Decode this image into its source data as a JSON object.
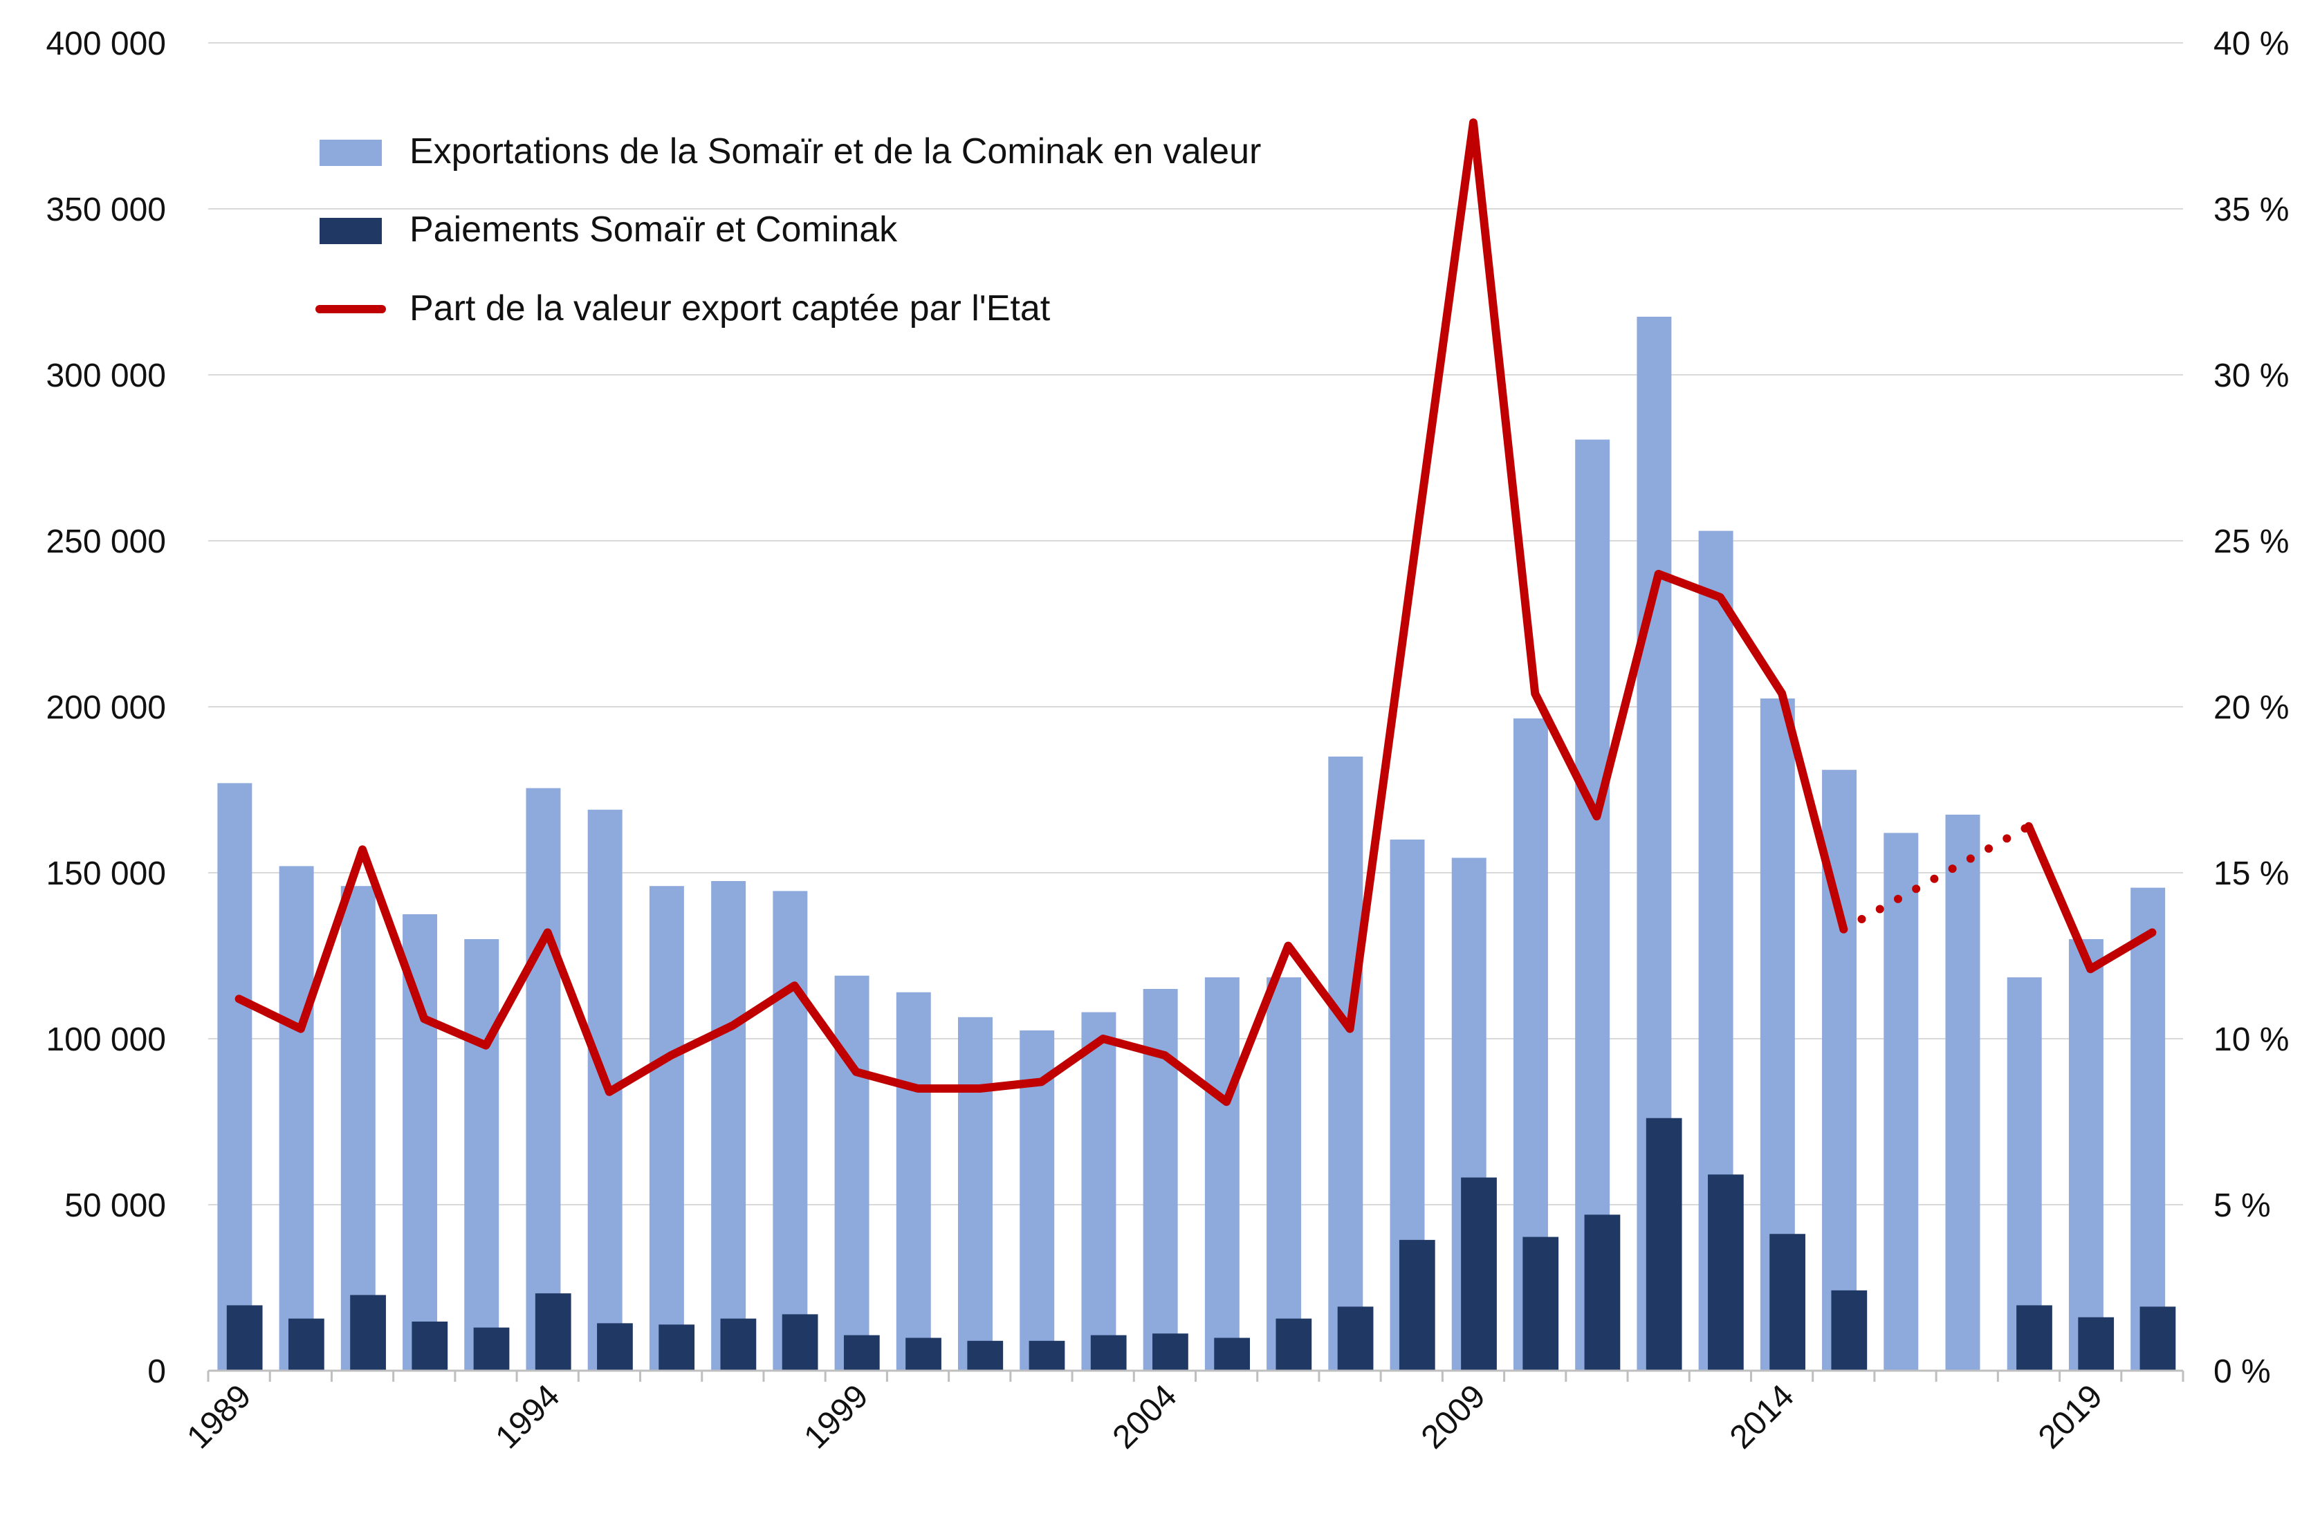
{
  "chart_data": {
    "type": "bar+line",
    "title": "",
    "categories": [
      1989,
      1990,
      1991,
      1992,
      1993,
      1994,
      1995,
      1996,
      1997,
      1998,
      1999,
      2000,
      2001,
      2002,
      2003,
      2004,
      2005,
      2006,
      2007,
      2008,
      2009,
      2010,
      2011,
      2012,
      2013,
      2014,
      2015,
      2016,
      2017,
      2018,
      2019,
      2020
    ],
    "x_tick_labels": [
      "1989",
      "1994",
      "1999",
      "2004",
      "2009",
      "2014",
      "2019"
    ],
    "y_left": {
      "ylim": [
        0,
        400000
      ],
      "ticks": [
        "0",
        "50 000",
        "100 000",
        "150 000",
        "200 000",
        "250 000",
        "300 000",
        "350 000",
        "400 000"
      ]
    },
    "y_right": {
      "ylim": [
        0,
        40
      ],
      "ticks": [
        "0 %",
        "5 %",
        "10 %",
        "15 %",
        "20 %",
        "25 %",
        "30 %",
        "35 %",
        "40 %"
      ]
    },
    "grid": true,
    "legend_position": "top-left",
    "series": [
      {
        "name": "Exportations de la Somaïr et de la Cominak en valeur",
        "type": "bar",
        "axis": "left",
        "color": "#8EA9DB",
        "values": [
          177000,
          152000,
          146000,
          137500,
          130000,
          175500,
          169000,
          146000,
          147500,
          144500,
          119000,
          114000,
          106500,
          102500,
          108000,
          115000,
          118500,
          118500,
          185000,
          160000,
          154500,
          196500,
          280500,
          317500,
          253000,
          202500,
          181000,
          162000,
          167500,
          118500,
          130000,
          145500
        ]
      },
      {
        "name": "Paiements Somaïr et Cominak",
        "type": "bar",
        "axis": "left",
        "color": "#203864",
        "values": [
          19700,
          15700,
          22800,
          14800,
          13000,
          23300,
          14300,
          13900,
          15700,
          17000,
          10700,
          9900,
          9000,
          9000,
          10700,
          11200,
          9900,
          15700,
          19300,
          39400,
          58200,
          40300,
          47000,
          76100,
          59100,
          41200,
          24200,
          0,
          0,
          19700,
          16100,
          19300
        ]
      },
      {
        "name": "Part de la valeur export captée par l'Etat",
        "type": "line",
        "axis": "right",
        "color": "#C00000",
        "values": [
          11.2,
          10.3,
          15.7,
          10.6,
          9.8,
          13.2,
          8.4,
          9.5,
          10.4,
          11.6,
          9.0,
          8.5,
          8.5,
          8.7,
          10.0,
          9.5,
          8.1,
          12.8,
          10.3,
          24.0,
          37.6,
          20.4,
          16.7,
          24.0,
          23.3,
          20.4,
          13.3,
          null,
          null,
          16.4,
          12.1,
          13.2
        ],
        "dotted_gap": true
      }
    ]
  }
}
